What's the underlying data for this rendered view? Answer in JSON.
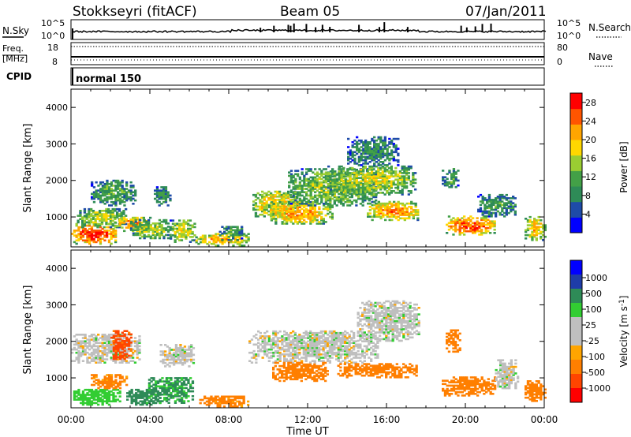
{
  "header": {
    "station": "Stokkseyri (fitACF)",
    "beam": "Beam 05",
    "date": "07/Jan/2011"
  },
  "strip_nsky": {
    "left_label": "N.Sky",
    "right_label": "N.Search",
    "left_ticks": [
      "10^5",
      "10^0"
    ],
    "right_ticks": [
      "10^5",
      "10^0"
    ]
  },
  "strip_freq": {
    "left_label_1": "Freq.",
    "left_label_2": "[MHz]",
    "right_label": "Nave",
    "left_ticks": [
      "18",
      "8"
    ],
    "right_ticks": [
      "80",
      "0"
    ]
  },
  "cpid": {
    "label": "CPID",
    "mode": "normal 150"
  },
  "colors": {
    "power": [
      "#0000ff",
      "#1e4ba8",
      "#2e8b57",
      "#43a047",
      "#9acd32",
      "#ffd700",
      "#ffa500",
      "#ff5500",
      "#ff0000"
    ],
    "velocity": [
      "#ff0000",
      "#ff4500",
      "#ff7f00",
      "#ffa500",
      "#bfbfbf",
      "#bfbfbf",
      "#32cd32",
      "#2e8b57",
      "#1e3ca8",
      "#0000ff"
    ]
  },
  "chart_data": [
    {
      "type": "heatmap",
      "name": "power",
      "ylabel": "Slant Range [km]",
      "ylim": [
        180,
        4500
      ],
      "xlim": [
        0,
        24
      ],
      "yticks": [
        "1000",
        "2000",
        "3000",
        "4000"
      ],
      "colorbar": {
        "label": "Power [dB]",
        "ticks": [
          "4",
          "8",
          "12",
          "16",
          "20",
          "24",
          "28"
        ],
        "range": [
          0,
          30
        ]
      },
      "regions": [
        {
          "t": [
            0.0,
            2.3
          ],
          "r": [
            250,
            800
          ],
          "level": 27
        },
        {
          "t": [
            0.3,
            2.8
          ],
          "r": [
            700,
            1200
          ],
          "level": 15
        },
        {
          "t": [
            1.0,
            3.2
          ],
          "r": [
            1300,
            2000
          ],
          "level": 11
        },
        {
          "t": [
            2.2,
            4.0
          ],
          "r": [
            600,
            1000
          ],
          "level": 22
        },
        {
          "t": [
            3.0,
            5.0
          ],
          "r": [
            400,
            900
          ],
          "level": 15
        },
        {
          "t": [
            4.2,
            5.0
          ],
          "r": [
            1300,
            1800
          ],
          "level": 9
        },
        {
          "t": [
            5.0,
            6.3
          ],
          "r": [
            300,
            900
          ],
          "level": 17
        },
        {
          "t": [
            6.3,
            9.0
          ],
          "r": [
            200,
            550
          ],
          "level": 20
        },
        {
          "t": [
            7.5,
            8.7
          ],
          "r": [
            350,
            750
          ],
          "level": 10
        },
        {
          "t": [
            9.2,
            11.5
          ],
          "r": [
            1000,
            1700
          ],
          "level": 19
        },
        {
          "t": [
            10.0,
            13.2
          ],
          "r": [
            800,
            1400
          ],
          "level": 21
        },
        {
          "t": [
            11.0,
            15.5
          ],
          "r": [
            1300,
            2300
          ],
          "level": 14
        },
        {
          "t": [
            13.0,
            17.5
          ],
          "r": [
            1600,
            2400
          ],
          "level": 16
        },
        {
          "t": [
            15.0,
            17.6
          ],
          "r": [
            900,
            1400
          ],
          "level": 22
        },
        {
          "t": [
            14.0,
            16.6
          ],
          "r": [
            2400,
            3200
          ],
          "level": 9
        },
        {
          "t": [
            18.8,
            19.6
          ],
          "r": [
            1800,
            2300
          ],
          "level": 11
        },
        {
          "t": [
            19.0,
            21.5
          ],
          "r": [
            500,
            1000
          ],
          "level": 25
        },
        {
          "t": [
            20.6,
            22.5
          ],
          "r": [
            1000,
            1600
          ],
          "level": 10
        },
        {
          "t": [
            23.0,
            24.0
          ],
          "r": [
            350,
            1000
          ],
          "level": 19
        }
      ]
    },
    {
      "type": "heatmap",
      "name": "velocity",
      "ylabel": "Slant Range [km]",
      "xlabel": "Time UT",
      "ylim": [
        180,
        4500
      ],
      "xlim": [
        0,
        24
      ],
      "yticks": [
        "1000",
        "2000",
        "3000",
        "4000"
      ],
      "xticks": [
        "00:00",
        "04:00",
        "08:00",
        "12:00",
        "16:00",
        "20:00",
        "00:00"
      ],
      "colorbar": {
        "label": "Velocity [m s^-1]",
        "ticks": [
          "1000",
          "500",
          "100",
          "25",
          "-25",
          "-100",
          "-500",
          "-1000"
        ]
      },
      "regions": [
        {
          "t": [
            0.0,
            3.5
          ],
          "r": [
            1400,
            2200
          ],
          "level": 0
        },
        {
          "t": [
            0.0,
            2.5
          ],
          "r": [
            250,
            700
          ],
          "level": 60
        },
        {
          "t": [
            1.0,
            2.8
          ],
          "r": [
            700,
            1100
          ],
          "level": -150
        },
        {
          "t": [
            2.0,
            3.0
          ],
          "r": [
            1500,
            2300
          ],
          "level": -700
        },
        {
          "t": [
            2.8,
            4.5
          ],
          "r": [
            250,
            700
          ],
          "level": 300
        },
        {
          "t": [
            3.8,
            6.2
          ],
          "r": [
            300,
            1000
          ],
          "level": 120
        },
        {
          "t": [
            4.5,
            6.2
          ],
          "r": [
            1300,
            1900
          ],
          "level": 0
        },
        {
          "t": [
            6.5,
            9.0
          ],
          "r": [
            200,
            500
          ],
          "level": -150
        },
        {
          "t": [
            9.0,
            15.5
          ],
          "r": [
            1400,
            2300
          ],
          "level": 0
        },
        {
          "t": [
            10.2,
            13.0
          ],
          "r": [
            900,
            1400
          ],
          "level": -200
        },
        {
          "t": [
            13.5,
            17.5
          ],
          "r": [
            1000,
            1400
          ],
          "level": -300
        },
        {
          "t": [
            14.5,
            17.6
          ],
          "r": [
            2000,
            3100
          ],
          "level": 0
        },
        {
          "t": [
            18.8,
            21.5
          ],
          "r": [
            500,
            1000
          ],
          "level": -350
        },
        {
          "t": [
            19.0,
            19.7
          ],
          "r": [
            1700,
            2300
          ],
          "level": -200
        },
        {
          "t": [
            21.5,
            22.6
          ],
          "r": [
            700,
            1500
          ],
          "level": 0
        },
        {
          "t": [
            23.0,
            24.0
          ],
          "r": [
            350,
            900
          ],
          "level": -200
        }
      ]
    }
  ]
}
